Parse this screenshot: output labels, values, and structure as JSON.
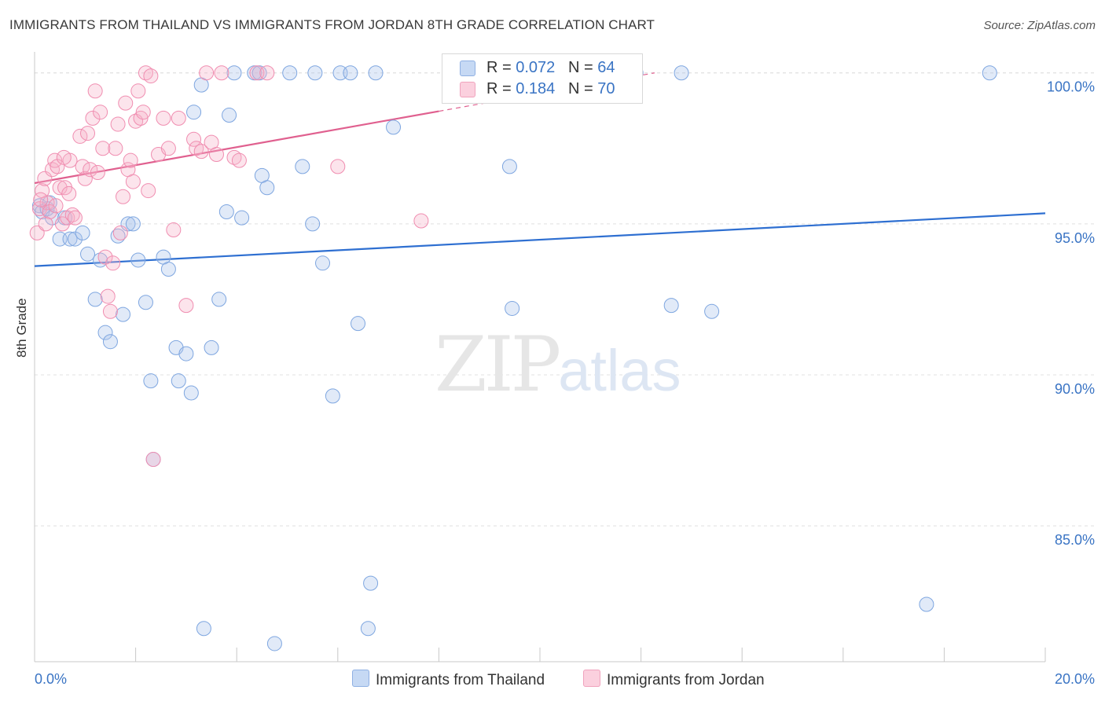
{
  "title": "IMMIGRANTS FROM THAILAND VS IMMIGRANTS FROM JORDAN 8TH GRADE CORRELATION CHART",
  "source": "Source: ZipAtlas.com",
  "watermark": {
    "zip": "ZIP",
    "atlas": "atlas"
  },
  "legend": {
    "thailand": {
      "r_label": "R = ",
      "r": "0.072",
      "n_label": "N = ",
      "n": "64",
      "color": "#aac4ec"
    },
    "jordan": {
      "r_label": "R = ",
      "r": "0.184",
      "n_label": "N = ",
      "n": "70",
      "color": "#f5b3c8"
    }
  },
  "bottom_legend": {
    "thailand": "Immigrants from Thailand",
    "jordan": "Immigrants from Jordan"
  },
  "chart_data": {
    "type": "scatter",
    "title": "IMMIGRANTS FROM THAILAND VS IMMIGRANTS FROM JORDAN 8TH GRADE CORRELATION CHART",
    "xlabel": "",
    "ylabel": "8th Grade",
    "xlim": [
      0.0,
      20.0
    ],
    "ylim": [
      80.5,
      100.8
    ],
    "x_tick_labels": [
      "0.0%",
      "20.0%"
    ],
    "y_ticks": [
      85.0,
      90.0,
      95.0,
      100.0
    ],
    "y_tick_labels": [
      "85.0%",
      "90.0%",
      "95.0%",
      "100.0%"
    ],
    "series": [
      {
        "name": "Immigrants from Thailand",
        "color": "#7ea6e0",
        "line_color": "#2e6fd1",
        "trend": {
          "x": [
            0.0,
            20.0
          ],
          "y": [
            93.6,
            95.35
          ]
        },
        "points": [
          [
            0.1,
            95.6
          ],
          [
            0.15,
            95.4
          ],
          [
            0.25,
            95.5
          ],
          [
            0.3,
            95.7
          ],
          [
            0.35,
            95.2
          ],
          [
            0.5,
            94.5
          ],
          [
            0.6,
            95.2
          ],
          [
            0.7,
            94.5
          ],
          [
            0.8,
            94.5
          ],
          [
            0.95,
            94.7
          ],
          [
            1.05,
            94.0
          ],
          [
            1.2,
            92.5
          ],
          [
            1.3,
            93.8
          ],
          [
            1.4,
            91.4
          ],
          [
            1.5,
            91.1
          ],
          [
            1.65,
            94.6
          ],
          [
            1.75,
            92.0
          ],
          [
            1.85,
            95.0
          ],
          [
            1.95,
            95.0
          ],
          [
            2.05,
            93.8
          ],
          [
            2.2,
            92.4
          ],
          [
            2.3,
            89.8
          ],
          [
            2.35,
            87.2
          ],
          [
            2.55,
            93.9
          ],
          [
            2.65,
            93.5
          ],
          [
            2.8,
            90.9
          ],
          [
            2.85,
            89.8
          ],
          [
            3.0,
            90.7
          ],
          [
            3.1,
            89.4
          ],
          [
            3.15,
            98.7
          ],
          [
            3.3,
            99.6
          ],
          [
            3.35,
            81.6
          ],
          [
            3.5,
            90.9
          ],
          [
            3.65,
            92.5
          ],
          [
            3.8,
            95.4
          ],
          [
            3.85,
            98.6
          ],
          [
            3.95,
            100.0
          ],
          [
            4.1,
            95.2
          ],
          [
            4.35,
            100.0
          ],
          [
            4.45,
            100.0
          ],
          [
            4.5,
            96.6
          ],
          [
            4.6,
            96.2
          ],
          [
            4.75,
            81.1
          ],
          [
            5.05,
            100.0
          ],
          [
            5.3,
            96.9
          ],
          [
            5.5,
            95.0
          ],
          [
            5.55,
            100.0
          ],
          [
            5.7,
            93.7
          ],
          [
            5.9,
            89.3
          ],
          [
            6.05,
            100.0
          ],
          [
            6.25,
            100.0
          ],
          [
            6.4,
            91.7
          ],
          [
            6.6,
            81.6
          ],
          [
            6.65,
            83.1
          ],
          [
            6.75,
            100.0
          ],
          [
            7.1,
            98.2
          ],
          [
            9.4,
            96.9
          ],
          [
            9.45,
            92.2
          ],
          [
            11.9,
            100.0
          ],
          [
            12.6,
            92.3
          ],
          [
            12.8,
            100.0
          ],
          [
            13.4,
            92.1
          ],
          [
            17.65,
            82.4
          ],
          [
            18.9,
            100.0
          ]
        ]
      },
      {
        "name": "Immigrants from Jordan",
        "color": "#f08db0",
        "line_color": "#e0608f",
        "trend": {
          "x": [
            0.0,
            20.0
          ],
          "y": [
            96.35,
            102.3
          ]
        },
        "trend_solid_end_x": 8.0,
        "points": [
          [
            0.05,
            94.7
          ],
          [
            0.1,
            95.5
          ],
          [
            0.15,
            96.1
          ],
          [
            0.2,
            96.5
          ],
          [
            0.25,
            95.7
          ],
          [
            0.3,
            95.4
          ],
          [
            0.35,
            96.8
          ],
          [
            0.4,
            97.1
          ],
          [
            0.45,
            96.9
          ],
          [
            0.5,
            96.2
          ],
          [
            0.55,
            95.0
          ],
          [
            0.6,
            96.2
          ],
          [
            0.65,
            95.2
          ],
          [
            0.7,
            97.1
          ],
          [
            0.75,
            95.3
          ],
          [
            0.8,
            95.2
          ],
          [
            0.9,
            97.9
          ],
          [
            0.95,
            96.9
          ],
          [
            1.0,
            96.5
          ],
          [
            1.05,
            98.0
          ],
          [
            1.1,
            96.8
          ],
          [
            1.15,
            98.5
          ],
          [
            1.2,
            99.4
          ],
          [
            1.25,
            96.7
          ],
          [
            1.3,
            98.7
          ],
          [
            1.35,
            97.5
          ],
          [
            1.4,
            93.9
          ],
          [
            1.45,
            92.6
          ],
          [
            1.5,
            92.1
          ],
          [
            1.55,
            93.7
          ],
          [
            1.6,
            97.5
          ],
          [
            1.65,
            98.3
          ],
          [
            1.7,
            94.7
          ],
          [
            1.75,
            95.9
          ],
          [
            1.8,
            99.0
          ],
          [
            1.85,
            96.8
          ],
          [
            1.9,
            97.1
          ],
          [
            1.95,
            96.4
          ],
          [
            2.0,
            98.4
          ],
          [
            2.05,
            99.4
          ],
          [
            2.1,
            98.5
          ],
          [
            2.15,
            98.7
          ],
          [
            2.2,
            100.0
          ],
          [
            2.25,
            96.1
          ],
          [
            2.3,
            99.9
          ],
          [
            2.35,
            87.2
          ],
          [
            2.45,
            97.3
          ],
          [
            2.55,
            98.5
          ],
          [
            2.65,
            97.5
          ],
          [
            2.75,
            94.8
          ],
          [
            2.85,
            98.5
          ],
          [
            3.0,
            92.3
          ],
          [
            3.15,
            97.8
          ],
          [
            3.2,
            97.5
          ],
          [
            3.3,
            97.4
          ],
          [
            3.4,
            100.0
          ],
          [
            3.5,
            97.7
          ],
          [
            3.6,
            97.3
          ],
          [
            3.7,
            100.0
          ],
          [
            3.95,
            97.2
          ],
          [
            4.05,
            97.1
          ],
          [
            4.4,
            100.0
          ],
          [
            4.6,
            100.0
          ],
          [
            6.0,
            96.9
          ],
          [
            7.65,
            95.1
          ],
          [
            0.12,
            95.8
          ],
          [
            0.22,
            95.0
          ],
          [
            0.42,
            95.6
          ],
          [
            0.58,
            97.2
          ],
          [
            0.68,
            96.0
          ]
        ]
      }
    ]
  }
}
